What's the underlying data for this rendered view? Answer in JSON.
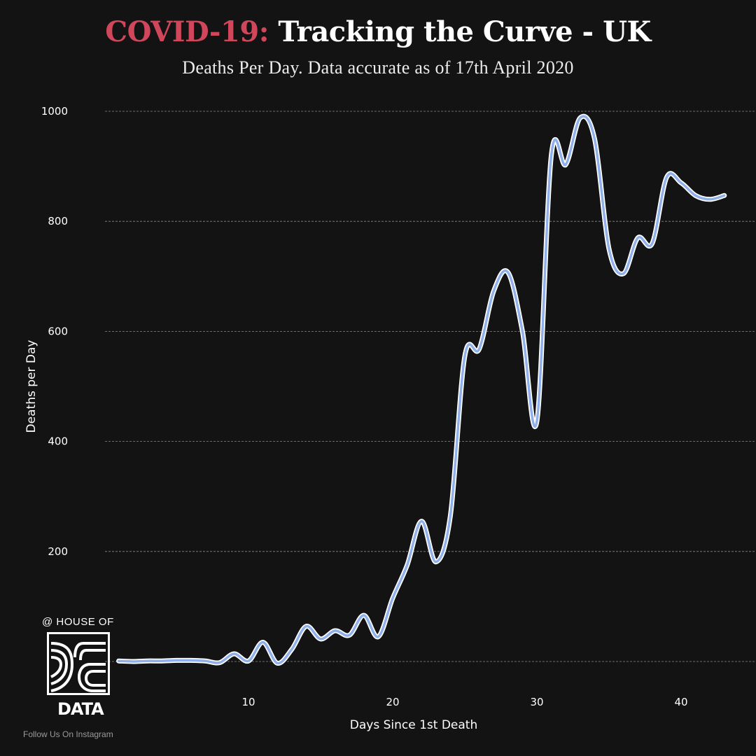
{
  "header": {
    "title_highlight": "COVID-19:",
    "title_rest": "Tracking the Curve  - UK",
    "subtitle": "Deaths Per Day. Data accurate as of 17th April 2020"
  },
  "colors": {
    "background": "#131313",
    "accent": "#d0465b",
    "line": "#8fb0ea",
    "grid": "#8a8a8a"
  },
  "chart_data": {
    "type": "line",
    "title": "COVID-19: Tracking the Curve  - UK",
    "subtitle": "Deaths Per Day. Data accurate as of 17th April 2020",
    "xlabel": "Days Since 1st Death",
    "ylabel": "Deaths per Day",
    "xlim": [
      1,
      43
    ],
    "ylim": [
      0,
      1000
    ],
    "xticks": [
      10,
      20,
      30,
      40
    ],
    "yticks": [
      200,
      400,
      600,
      800,
      1000
    ],
    "grid": "horizontal dashed",
    "series": [
      {
        "name": "",
        "x": [
          1,
          2,
          3,
          4,
          5,
          6,
          7,
          8,
          9,
          10,
          11,
          12,
          13,
          14,
          15,
          16,
          17,
          18,
          19,
          20,
          21,
          22,
          23,
          24,
          25,
          26,
          27,
          28,
          29,
          30,
          31,
          32,
          33,
          34,
          35,
          36,
          37,
          38,
          39,
          40,
          41,
          42,
          43
        ],
        "y": [
          1,
          0,
          1,
          1,
          2,
          2,
          1,
          -2,
          14,
          1,
          35,
          -3,
          22,
          64,
          41,
          56,
          48,
          84,
          45,
          115,
          175,
          255,
          181,
          265,
          555,
          568,
          673,
          707,
          600,
          437,
          920,
          903,
          988,
          950,
          750,
          705,
          770,
          760,
          880,
          870,
          847,
          840,
          847
        ]
      }
    ]
  },
  "brand": {
    "top": "@ HOUSE OF",
    "bottom": "DATA",
    "follow": "Follow Us On Instagram"
  }
}
